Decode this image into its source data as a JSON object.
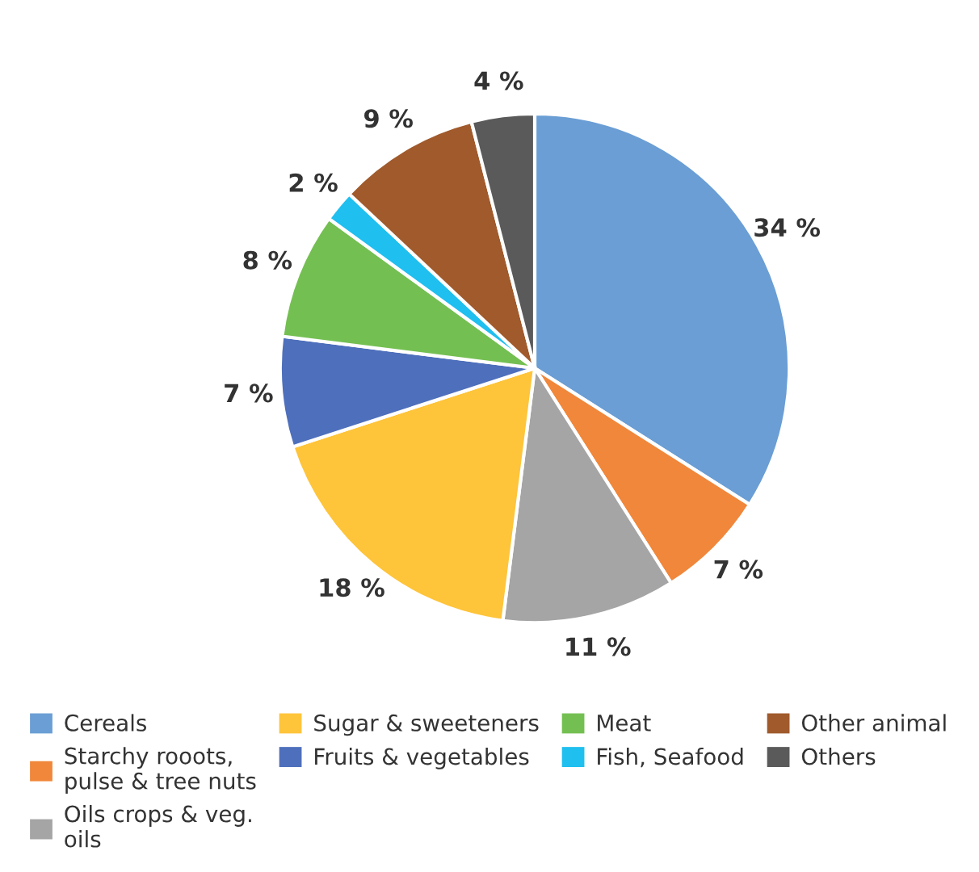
{
  "chart_data": {
    "type": "pie",
    "categories": [
      "Cereals",
      "Starchy rooots, pulse & tree nuts",
      "Oils crops & veg. oils",
      "Sugar & sweeteners",
      "Fruits & vegetables",
      "Meat",
      "Fish, Seafood",
      "Other animal",
      "Others"
    ],
    "values": [
      34,
      7,
      11,
      18,
      7,
      8,
      2,
      9,
      4
    ],
    "colors": [
      "#6a9ed4",
      "#f0873a",
      "#a5a5a5",
      "#fec43a",
      "#4e6fbb",
      "#74bf52",
      "#1fbfef",
      "#a05a2c",
      "#5a5a5a"
    ],
    "value_labels": [
      "34 %",
      "7 %",
      "11 %",
      "18 %",
      "7 %",
      "8 %",
      "2 %",
      "9 %",
      "4 %"
    ],
    "legend": "bottom"
  }
}
